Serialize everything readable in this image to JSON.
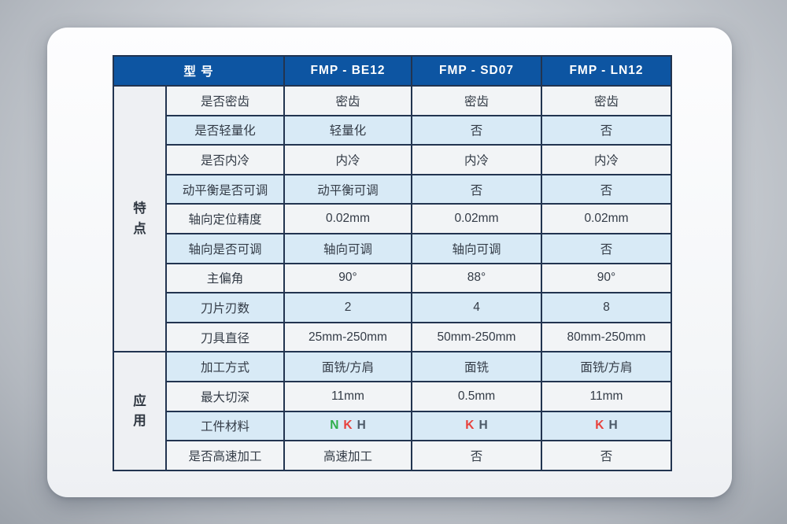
{
  "chart_data": {
    "type": "table",
    "header": {
      "corner_label": "型 号",
      "models": [
        "FMP - BE12",
        "FMP - SD07",
        "FMP - LN12"
      ]
    },
    "groups": [
      {
        "label": "特点",
        "rows": [
          {
            "attribute": "是否密齿",
            "values": [
              "密齿",
              "密齿",
              "密齿"
            ]
          },
          {
            "attribute": "是否轻量化",
            "values": [
              "轻量化",
              "否",
              "否"
            ]
          },
          {
            "attribute": "是否内冷",
            "values": [
              "内冷",
              "内冷",
              "内冷"
            ]
          },
          {
            "attribute": "动平衡是否可调",
            "values": [
              "动平衡可调",
              "否",
              "否"
            ]
          },
          {
            "attribute": "轴向定位精度",
            "values": [
              "0.02mm",
              "0.02mm",
              "0.02mm"
            ]
          },
          {
            "attribute": "轴向是否可调",
            "values": [
              "轴向可调",
              "轴向可调",
              "否"
            ]
          },
          {
            "attribute": "主偏角",
            "values": [
              "90°",
              "88°",
              "90°"
            ]
          },
          {
            "attribute": "刀片刃数",
            "values": [
              "2",
              "4",
              "8"
            ]
          },
          {
            "attribute": "刀具直径",
            "values": [
              "25mm-250mm",
              "50mm-250mm",
              "80mm-250mm"
            ]
          }
        ]
      },
      {
        "label": "应用",
        "rows": [
          {
            "attribute": "加工方式",
            "values": [
              "面铣/方肩",
              "面铣",
              "面铣/方肩"
            ]
          },
          {
            "attribute": "最大切深",
            "values": [
              "11mm",
              "0.5mm",
              "11mm"
            ]
          },
          {
            "attribute": "工件材料",
            "values": [
              [
                {
                  "text": "N",
                  "color": "#2fae4a"
                },
                {
                  "text": "K",
                  "color": "#e8413c"
                },
                {
                  "text": "H",
                  "color": "#4d5a68"
                }
              ],
              [
                {
                  "text": "K",
                  "color": "#e8413c"
                },
                {
                  "text": "H",
                  "color": "#4d5a68"
                }
              ],
              [
                {
                  "text": "K",
                  "color": "#e8413c"
                },
                {
                  "text": "H",
                  "color": "#4d5a68"
                }
              ]
            ]
          },
          {
            "attribute": "是否高速加工",
            "values": [
              "高速加工",
              "否",
              "否"
            ]
          }
        ]
      }
    ],
    "colors": {
      "header_bg": "#0d55a2",
      "header_text": "#ffffff",
      "row_light": "#f2f4f6",
      "row_blue": "#d8eaf6",
      "border": "#223450",
      "cell_text": "#333b46",
      "material_n": "#2fae4a",
      "material_k": "#e8413c",
      "material_h": "#4d5a68"
    }
  }
}
